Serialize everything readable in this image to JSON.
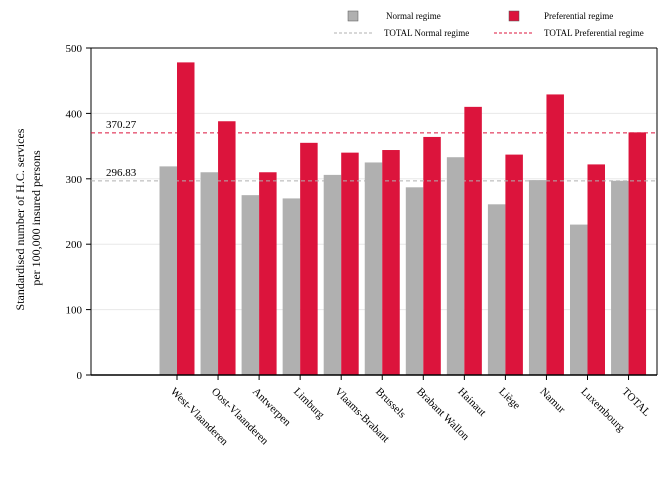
{
  "chart_data": {
    "type": "bar",
    "ylabel_line1": "Standardised number of H.C. services",
    "ylabel_line2": "per 100,000 insured persons",
    "xlabel": "",
    "ylim": [
      0,
      500
    ],
    "yticks": [
      "0",
      "100",
      "200",
      "300",
      "400",
      "500"
    ],
    "ytick_values": [
      0,
      100,
      200,
      300,
      400,
      500
    ],
    "grid": "horizontal",
    "legend_position": "top",
    "categories": [
      "West-Vlaanderen",
      "Oost-Vlaanderen",
      "Antwerpen",
      "Limburg",
      "Vlaams-Brabant",
      "Brussels",
      "Brabant Wallon",
      "Hainaut",
      "Liège",
      "Namur",
      "Luxembourg",
      "TOTAL"
    ],
    "series": [
      {
        "name": "Normal regime",
        "color": "#b0b0b0",
        "values": [
          319,
          310,
          275,
          270,
          306,
          325,
          287,
          333,
          261,
          298,
          230,
          297
        ]
      },
      {
        "name": "Preferential regime",
        "color": "#dc143c",
        "values": [
          478,
          388,
          310,
          355,
          340,
          344,
          364,
          410,
          337,
          429,
          322,
          371
        ]
      }
    ],
    "reference_lines": [
      {
        "name": "TOTAL Normal regime",
        "value": 296.83,
        "label": "296.83",
        "color": "#b0b0b0"
      },
      {
        "name": "TOTAL Preferential regime",
        "value": 370.27,
        "label": "370.27",
        "color": "#dc143c"
      }
    ]
  }
}
